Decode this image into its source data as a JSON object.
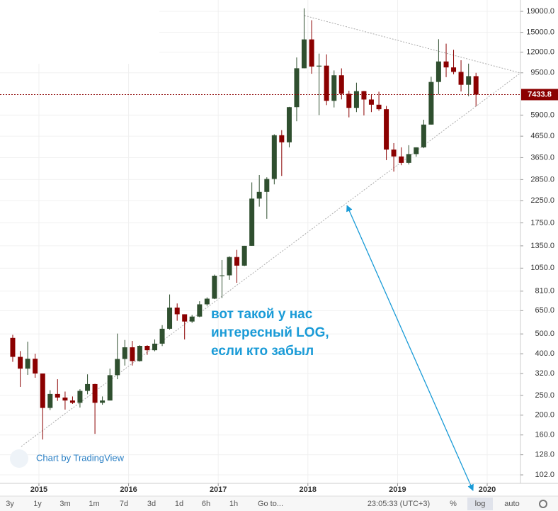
{
  "chart_data": {
    "type": "candlestick",
    "log_scale": true,
    "grid": true,
    "up_color": "#2f4f2f",
    "down_color": "#8b0000",
    "x": [
      2014.708,
      2014.792,
      2014.875,
      2014.958,
      2015.042,
      2015.125,
      2015.208,
      2015.292,
      2015.375,
      2015.458,
      2015.542,
      2015.625,
      2015.708,
      2015.792,
      2015.875,
      2015.958,
      2016.042,
      2016.125,
      2016.208,
      2016.292,
      2016.375,
      2016.458,
      2016.542,
      2016.625,
      2016.708,
      2016.792,
      2016.875,
      2016.958,
      2017.042,
      2017.125,
      2017.208,
      2017.292,
      2017.375,
      2017.458,
      2017.542,
      2017.625,
      2017.708,
      2017.792,
      2017.875,
      2017.958,
      2018.042,
      2018.125,
      2018.208,
      2018.292,
      2018.375,
      2018.458,
      2018.542,
      2018.625,
      2018.708,
      2018.792,
      2018.875,
      2018.958,
      2019.042,
      2019.125,
      2019.208,
      2019.292,
      2019.375,
      2019.458,
      2019.542,
      2019.625,
      2019.708,
      2019.792,
      2019.875
    ],
    "open": [
      478,
      386,
      338,
      378,
      320,
      217,
      254,
      244,
      236,
      230,
      263,
      284,
      230,
      236,
      314,
      377,
      430,
      368,
      437,
      416,
      448,
      530,
      673,
      624,
      575,
      608,
      698,
      744,
      964,
      968,
      1190,
      1080,
      1350,
      2300,
      2480,
      2870,
      4700,
      4340,
      6450,
      10000,
      13850,
      10200,
      10300,
      6930,
      9240,
      7500,
      6400,
      7730,
      7030,
      6630,
      6300,
      4000,
      3700,
      3440,
      3800,
      4100,
      5300,
      8570,
      10800,
      10100,
      9600,
      8300,
      9150
    ],
    "high": [
      495,
      412,
      458,
      400,
      320,
      265,
      300,
      261,
      247,
      268,
      317,
      285,
      247,
      338,
      502,
      467,
      462,
      440,
      440,
      470,
      552,
      780,
      705,
      624,
      620,
      723,
      755,
      976,
      1150,
      1200,
      1290,
      1350,
      2760,
      3000,
      2925,
      4750,
      4980,
      6470,
      11300,
      19666,
      17200,
      11800,
      11700,
      9760,
      9990,
      7760,
      8500,
      7750,
      7400,
      7680,
      6540,
      4300,
      4100,
      4200,
      4100,
      5600,
      9090,
      13880,
      13200,
      12320,
      10950,
      10540,
      9500
    ],
    "low": [
      365,
      275,
      315,
      305,
      152,
      212,
      235,
      213,
      227,
      218,
      253,
      162,
      225,
      236,
      300,
      350,
      350,
      366,
      395,
      411,
      436,
      525,
      580,
      470,
      566,
      604,
      686,
      740,
      750,
      920,
      890,
      1075,
      1350,
      2100,
      1830,
      2700,
      2970,
      4100,
      5500,
      10000,
      9400,
      5900,
      6600,
      6430,
      7040,
      5750,
      6100,
      5880,
      6100,
      6200,
      3550,
      3120,
      3350,
      3380,
      3690,
      4060,
      5300,
      7440,
      9050,
      9350,
      7700,
      7300,
      6520
    ],
    "close": [
      386,
      338,
      378,
      320,
      217,
      254,
      244,
      236,
      230,
      263,
      284,
      230,
      236,
      314,
      377,
      430,
      368,
      437,
      416,
      448,
      530,
      673,
      624,
      575,
      608,
      698,
      744,
      964,
      968,
      1190,
      1080,
      1350,
      2300,
      2480,
      2870,
      4700,
      4340,
      6450,
      10000,
      13850,
      10200,
      10300,
      6930,
      9240,
      7500,
      6400,
      7730,
      7030,
      6630,
      6300,
      4000,
      3700,
      3440,
      3800,
      4100,
      5300,
      8570,
      10800,
      10100,
      9600,
      8300,
      9150,
      7433.8
    ],
    "xlim": [
      2014.566,
      2020.371
    ],
    "xticks": [
      2015,
      2016,
      2017,
      2018,
      2019,
      2020
    ],
    "ylim": [
      92.7,
      21600
    ],
    "yticks": [
      {
        "value": 19000,
        "label": "19000.0"
      },
      {
        "value": 15000,
        "label": "15000.0"
      },
      {
        "value": 12000,
        "label": "12000.0"
      },
      {
        "value": 9500,
        "label": "9500.0"
      },
      {
        "value": 5900,
        "label": "5900.0"
      },
      {
        "value": 4650,
        "label": "4650.0"
      },
      {
        "value": 3650,
        "label": "3650.0"
      },
      {
        "value": 2850,
        "label": "2850.0"
      },
      {
        "value": 2250,
        "label": "2250.0"
      },
      {
        "value": 1750,
        "label": "1750.0"
      },
      {
        "value": 1350,
        "label": "1350.0"
      },
      {
        "value": 1050,
        "label": "1050.0"
      },
      {
        "value": 810,
        "label": "810.0"
      },
      {
        "value": 650,
        "label": "650.0"
      },
      {
        "value": 500,
        "label": "500.0"
      },
      {
        "value": 400,
        "label": "400.0"
      },
      {
        "value": 320,
        "label": "320.0"
      },
      {
        "value": 250,
        "label": "250.0"
      },
      {
        "value": 200,
        "label": "200.0"
      },
      {
        "value": 160,
        "label": "160.0"
      },
      {
        "value": 128,
        "label": "128.0"
      },
      {
        "value": 102,
        "label": "102.0"
      }
    ],
    "annotation": [
      "вот такой у нас",
      "интересный LOG,",
      "если кто забыл"
    ],
    "watermark": "Chart by TradingView"
  },
  "toolbar": {
    "ranges": [
      "3y",
      "1y",
      "3m",
      "1m",
      "7d",
      "3d",
      "1d",
      "6h",
      "1h"
    ],
    "goto": "Go to...",
    "time": "23:05:33 (UTC+3)",
    "percent": "%",
    "log": "log",
    "auto": "auto"
  }
}
